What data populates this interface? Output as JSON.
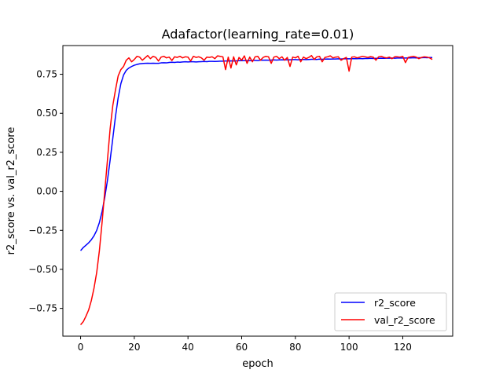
{
  "chart_data": {
    "type": "line",
    "title": "Adafactor(learning_rate=0.01)",
    "xlabel": "epoch",
    "ylabel": "r2_score vs. val_r2_score",
    "xlim": [
      -6.6,
      138.6
    ],
    "ylim": [
      -0.928,
      0.934
    ],
    "xticks": [
      0,
      20,
      40,
      60,
      80,
      100,
      120
    ],
    "yticks": [
      -0.75,
      -0.5,
      -0.25,
      0.0,
      0.25,
      0.5,
      0.75
    ],
    "ytick_labels": [
      "−0.75",
      "−0.50",
      "−0.25",
      "0.00",
      "0.25",
      "0.50",
      "0.75"
    ],
    "grid": false,
    "legend_position": "lower-right",
    "series": [
      {
        "name": "r2_score",
        "color": "#0000ff",
        "x": [
          0,
          1,
          2,
          3,
          4,
          5,
          6,
          7,
          8,
          9,
          10,
          11,
          12,
          13,
          14,
          15,
          16,
          17,
          18,
          19,
          20,
          21,
          22,
          23,
          24,
          25,
          26,
          27,
          28,
          29,
          30,
          31,
          32,
          33,
          34,
          35,
          36,
          37,
          38,
          39,
          40,
          41,
          42,
          43,
          44,
          45,
          46,
          47,
          48,
          49,
          50,
          51,
          52,
          53,
          54,
          55,
          56,
          57,
          58,
          59,
          60,
          61,
          62,
          63,
          64,
          65,
          66,
          67,
          68,
          69,
          70,
          71,
          72,
          73,
          74,
          75,
          76,
          77,
          78,
          79,
          80,
          81,
          82,
          83,
          84,
          85,
          86,
          87,
          88,
          89,
          90,
          91,
          92,
          93,
          94,
          95,
          96,
          97,
          98,
          99,
          100,
          101,
          102,
          103,
          104,
          105,
          106,
          107,
          108,
          109,
          110,
          111,
          112,
          113,
          114,
          115,
          116,
          117,
          118,
          119,
          120,
          121,
          122,
          123,
          124,
          125,
          126,
          127,
          128,
          129,
          130,
          131
        ],
        "y": [
          -0.38,
          -0.36,
          -0.345,
          -0.33,
          -0.31,
          -0.285,
          -0.25,
          -0.2,
          -0.13,
          -0.04,
          0.07,
          0.2,
          0.34,
          0.48,
          0.6,
          0.69,
          0.745,
          0.775,
          0.79,
          0.8,
          0.808,
          0.813,
          0.817,
          0.819,
          0.82,
          0.821,
          0.82,
          0.821,
          0.82,
          0.82,
          0.823,
          0.824,
          0.823,
          0.826,
          0.827,
          0.826,
          0.828,
          0.827,
          0.829,
          0.83,
          0.829,
          0.83,
          0.83,
          0.829,
          0.83,
          0.831,
          0.832,
          0.831,
          0.833,
          0.833,
          0.832,
          0.833,
          0.834,
          0.834,
          0.835,
          0.835,
          0.836,
          0.835,
          0.836,
          0.837,
          0.837,
          0.838,
          0.838,
          0.837,
          0.839,
          0.839,
          0.838,
          0.84,
          0.84,
          0.841,
          0.84,
          0.841,
          0.842,
          0.841,
          0.842,
          0.843,
          0.842,
          0.843,
          0.843,
          0.844,
          0.844,
          0.843,
          0.845,
          0.845,
          0.844,
          0.845,
          0.846,
          0.846,
          0.845,
          0.847,
          0.846,
          0.847,
          0.848,
          0.847,
          0.848,
          0.848,
          0.849,
          0.848,
          0.849,
          0.85,
          0.849,
          0.85,
          0.85,
          0.85,
          0.851,
          0.85,
          0.851,
          0.851,
          0.852,
          0.851,
          0.852,
          0.852,
          0.853,
          0.852,
          0.853,
          0.853,
          0.854,
          0.853,
          0.854,
          0.854,
          0.855,
          0.854,
          0.855,
          0.855,
          0.856,
          0.855,
          0.856,
          0.856,
          0.857,
          0.856,
          0.857,
          0.857
        ]
      },
      {
        "name": "val_r2_score",
        "color": "#ff0000",
        "x": [
          0,
          1,
          2,
          3,
          4,
          5,
          6,
          7,
          8,
          9,
          10,
          11,
          12,
          13,
          14,
          15,
          16,
          17,
          18,
          19,
          20,
          21,
          22,
          23,
          24,
          25,
          26,
          27,
          28,
          29,
          30,
          31,
          32,
          33,
          34,
          35,
          36,
          37,
          38,
          39,
          40,
          41,
          42,
          43,
          44,
          45,
          46,
          47,
          48,
          49,
          50,
          51,
          52,
          53,
          54,
          55,
          56,
          57,
          58,
          59,
          60,
          61,
          62,
          63,
          64,
          65,
          66,
          67,
          68,
          69,
          70,
          71,
          72,
          73,
          74,
          75,
          76,
          77,
          78,
          79,
          80,
          81,
          82,
          83,
          84,
          85,
          86,
          87,
          88,
          89,
          90,
          91,
          92,
          93,
          94,
          95,
          96,
          97,
          98,
          99,
          100,
          101,
          102,
          103,
          104,
          105,
          106,
          107,
          108,
          109,
          110,
          111,
          112,
          113,
          114,
          115,
          116,
          117,
          118,
          119,
          120,
          121,
          122,
          123,
          124,
          125,
          126,
          127,
          128,
          129,
          130,
          131
        ],
        "y": [
          -0.855,
          -0.835,
          -0.8,
          -0.76,
          -0.7,
          -0.62,
          -0.52,
          -0.38,
          -0.2,
          0.0,
          0.2,
          0.4,
          0.55,
          0.65,
          0.74,
          0.78,
          0.8,
          0.84,
          0.855,
          0.83,
          0.845,
          0.865,
          0.86,
          0.84,
          0.855,
          0.87,
          0.85,
          0.865,
          0.858,
          0.835,
          0.86,
          0.865,
          0.855,
          0.86,
          0.838,
          0.862,
          0.858,
          0.865,
          0.855,
          0.862,
          0.86,
          0.835,
          0.865,
          0.858,
          0.862,
          0.855,
          0.84,
          0.86,
          0.858,
          0.862,
          0.85,
          0.868,
          0.865,
          0.862,
          0.78,
          0.86,
          0.79,
          0.862,
          0.81,
          0.858,
          0.84,
          0.868,
          0.82,
          0.86,
          0.83,
          0.862,
          0.865,
          0.84,
          0.858,
          0.865,
          0.862,
          0.82,
          0.86,
          0.865,
          0.85,
          0.862,
          0.84,
          0.858,
          0.8,
          0.86,
          0.855,
          0.865,
          0.83,
          0.86,
          0.85,
          0.858,
          0.87,
          0.845,
          0.862,
          0.865,
          0.83,
          0.858,
          0.862,
          0.868,
          0.855,
          0.86,
          0.862,
          0.84,
          0.85,
          0.858,
          0.77,
          0.86,
          0.862,
          0.855,
          0.86,
          0.865,
          0.862,
          0.858,
          0.863,
          0.86,
          0.84,
          0.862,
          0.865,
          0.858,
          0.855,
          0.86,
          0.85,
          0.862,
          0.862,
          0.86,
          0.865,
          0.825,
          0.858,
          0.862,
          0.865,
          0.86,
          0.85,
          0.858,
          0.862,
          0.86,
          0.855,
          0.845
        ]
      }
    ]
  }
}
